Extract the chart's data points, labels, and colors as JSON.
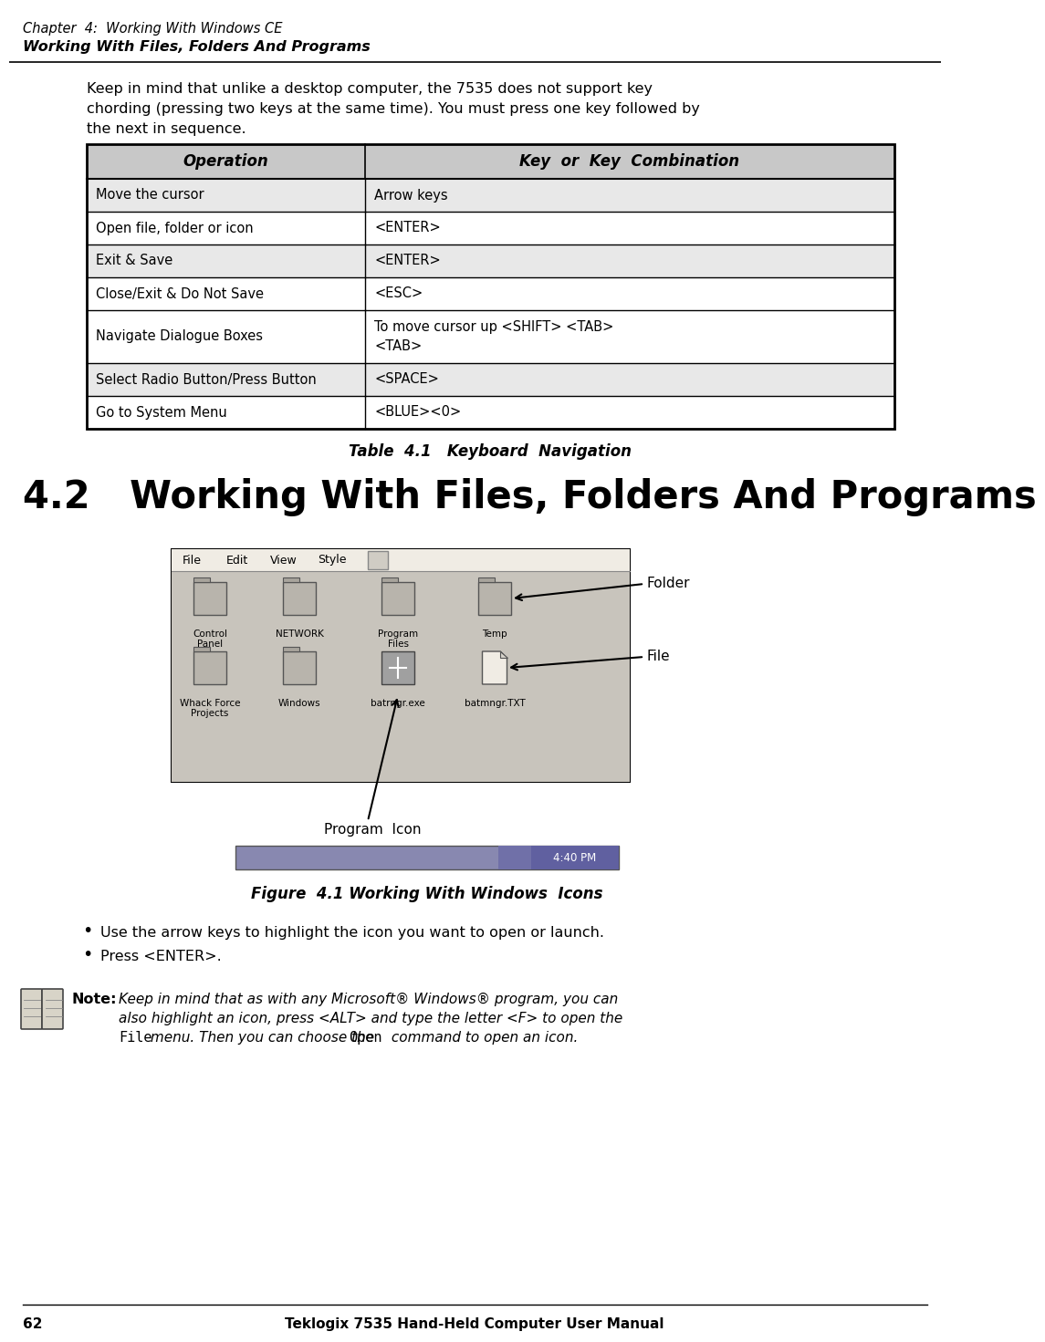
{
  "bg_color": "#ffffff",
  "header_line1": "Chapter  4:  Working With Windows CE",
  "header_line2": "Working With Files, Folders And Programs",
  "page_number": "62",
  "page_footer": "Teklogix 7535 Hand-Held Computer User Manual",
  "table_caption": "Table  4.1   Keyboard  Navigation",
  "table_headers": [
    "Operation",
    "Key  or  Key  Combination"
  ],
  "table_rows": [
    [
      "Move the cursor",
      "Arrow keys"
    ],
    [
      "Open file, folder or icon",
      "<ENTER>"
    ],
    [
      "Exit & Save",
      "<ENTER>"
    ],
    [
      "Close/Exit & Do Not Save",
      "<ESC>"
    ],
    [
      "Navigate Dialogue Boxes",
      "<TAB>\nTo move cursor up <SHIFT> <TAB>"
    ],
    [
      "Select Radio Button/Press Button",
      "<SPACE>"
    ],
    [
      "Go to System Menu",
      "<BLUE><0>"
    ]
  ],
  "section_title": "4.2   Working With Files, Folders And Programs",
  "figure_caption": "Figure  4.1 Working With Windows  Icons",
  "bullet_points": [
    "Use the arrow keys to highlight the icon you want to open or launch.",
    "Press <ENTER>."
  ],
  "note_label": "Note:",
  "note_line1": "Keep in mind that as with any Microsoft® Windows® program, you can",
  "note_line2": "also highlight an icon, press <ALT> and type the letter <F> to open the",
  "note_line3a": "File",
  "note_line3b": " menu. Then you can choose the ",
  "note_line3c": "Open",
  "note_line3d": " command to open an icon.",
  "header_bg": "#c8c8c8",
  "row_colors": [
    "#e8e8e8",
    "#ffffff",
    "#e8e8e8",
    "#ffffff",
    "#ffffff",
    "#e8e8e8",
    "#ffffff"
  ],
  "label_folder": "Folder",
  "label_file": "File",
  "label_program": "Program  Icon",
  "intro_lines": [
    "Keep in mind that unlike a desktop computer, the 7535 does not support key",
    "chording (pressing two keys at the same time). You must press one key followed by",
    "the next in sequence."
  ]
}
